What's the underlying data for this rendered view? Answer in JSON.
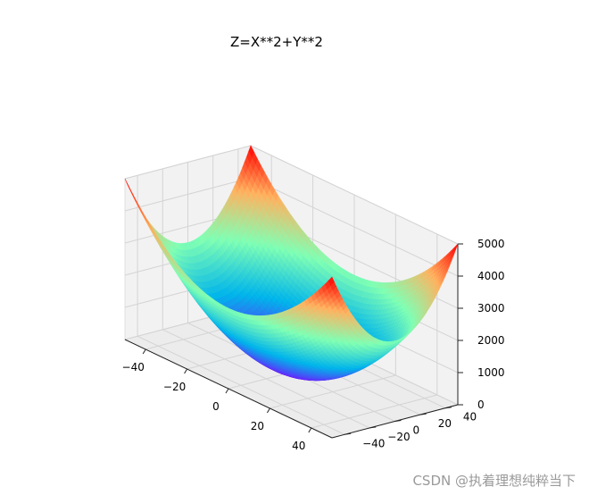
{
  "chart_data": {
    "type": "surface",
    "title": "Z=X**2+Y**2",
    "formula": "z = x^2 + y^2",
    "x_range": [
      -50,
      50
    ],
    "y_range": [
      -50,
      50
    ],
    "zlim": [
      0,
      5000
    ],
    "x_ticks": [
      "−40",
      "−20",
      "0",
      "20",
      "40"
    ],
    "y_ticks": [
      "−40",
      "−20",
      "0",
      "20",
      "40"
    ],
    "z_ticks": [
      "0",
      "1000",
      "2000",
      "3000",
      "4000",
      "5000"
    ],
    "x_tick_values": [
      -40,
      -20,
      0,
      20,
      40
    ],
    "y_tick_values": [
      -40,
      -20,
      0,
      20,
      40
    ],
    "z_tick_values": [
      0,
      1000,
      2000,
      3000,
      4000,
      5000
    ],
    "colormap": "rainbow",
    "colormap_stops": [
      "#8000ff",
      "#00b5eb",
      "#80ffb4",
      "#ffb360",
      "#ff0000"
    ],
    "grid": true,
    "pane_color": "#f2f2f2",
    "grid_color": "#d4d4d4"
  },
  "watermark": "CSDN @执着理想纯粹当下"
}
